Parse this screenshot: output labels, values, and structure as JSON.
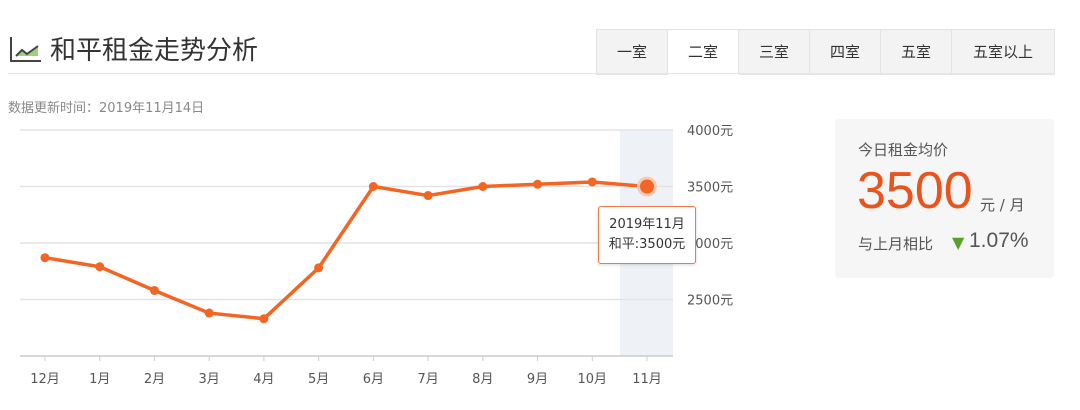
{
  "header": {
    "title": "和平租金走势分析",
    "icon": "line-chart-icon"
  },
  "tabs": [
    {
      "label": "一室"
    },
    {
      "label": "二室",
      "active": true
    },
    {
      "label": "三室"
    },
    {
      "label": "四室"
    },
    {
      "label": "五室"
    },
    {
      "label": "五室以上"
    }
  ],
  "updated": "数据更新时间：2019年11月14日",
  "tooltip": {
    "line1": "2019年11月",
    "line2": "和平:3500元"
  },
  "card": {
    "label": "今日租金均价",
    "price": "3500",
    "unit": "元 / 月",
    "compare_label": "与上月相比",
    "direction": "down",
    "change": "1.07%",
    "accent": "#e8541e",
    "down_color": "#5aa02c"
  },
  "chart_data": {
    "type": "line",
    "categories": [
      "12月",
      "1月",
      "2月",
      "3月",
      "4月",
      "5月",
      "6月",
      "7月",
      "8月",
      "9月",
      "10月",
      "11月"
    ],
    "series": [
      {
        "name": "和平",
        "values": [
          2870,
          2790,
          2580,
          2380,
          2330,
          2780,
          3500,
          3420,
          3500,
          3520,
          3540,
          3500
        ]
      }
    ],
    "ylim": [
      2000,
      4000
    ],
    "yticks": [
      2500,
      3000,
      3500,
      4000
    ],
    "ytick_labels": [
      "2500元",
      "3000元",
      "3500元",
      "4000元"
    ],
    "grid": true,
    "highlight_index": 11,
    "line_color": "#f26522"
  }
}
